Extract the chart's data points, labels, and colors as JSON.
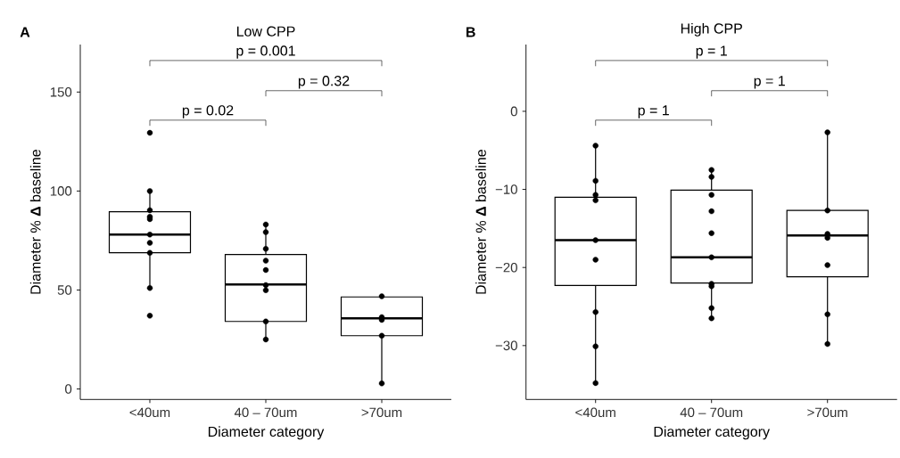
{
  "chart_data": [
    {
      "type": "box",
      "title": "Low CPP",
      "xlabel": "Diameter category",
      "ylabel": "Diameter % **Δ** baseline",
      "categories": [
        "<40um",
        "40 – 70um",
        ">70um"
      ],
      "boxes": [
        {
          "low": 51,
          "q1": 68.8,
          "median": 78,
          "q3": 89.5,
          "high": 100
        },
        {
          "low": 25,
          "q1": 34.1,
          "median": 52.8,
          "q3": 67.9,
          "high": 83.1
        },
        {
          "low": 2.8,
          "q1": 26.9,
          "median": 35.7,
          "q3": 46.5,
          "high": 46.8
        }
      ],
      "series": [
        {
          "type": "scatter",
          "color": "#000000",
          "x": [
            "<40um",
            "<40um",
            "<40um",
            "<40um",
            "<40um",
            "<40um",
            "<40um",
            "<40um",
            "<40um",
            "<40um"
          ],
          "values": [
            129.4,
            100,
            90.3,
            87,
            85.8,
            78,
            73.8,
            68.8,
            51,
            37
          ]
        },
        {
          "type": "scatter",
          "color": "#000000",
          "x": [
            "40 – 70um",
            "40 – 70um",
            "40 – 70um",
            "40 – 70um",
            "40 – 70um",
            "40 – 70um",
            "40 – 70um",
            "40 – 70um",
            "40 – 70um"
          ],
          "values": [
            83.1,
            79.2,
            70.8,
            64.8,
            60.1,
            52.5,
            49.9,
            34.1,
            25
          ]
        },
        {
          "type": "scatter",
          "color": "#000000",
          "x": [
            ">70um",
            ">70um",
            ">70um",
            ">70um",
            ">70um"
          ],
          "values": [
            46.8,
            36.3,
            34.9,
            26.9,
            2.8
          ]
        }
      ],
      "ylim": [
        -5.3,
        174
      ],
      "yticks": [
        0,
        50,
        100,
        150
      ],
      "marker": "circle",
      "grid": false,
      "annotations": [
        "A",
        "p = 0.02",
        "p = 0.32",
        "p = 0.001"
      ]
    },
    {
      "type": "box",
      "title": "High CPP",
      "xlabel": "Diameter category",
      "ylabel": "Diameter % **Δ** baseline",
      "categories": [
        "<40um",
        "40 – 70um",
        ">70um"
      ],
      "boxes": [
        {
          "low": -34.8,
          "q1": -22.3,
          "median": -16.5,
          "q3": -11.0,
          "high": -4.4
        },
        {
          "low": -26.5,
          "q1": -22.0,
          "median": -18.7,
          "q3": -10.1,
          "high": -7.5
        },
        {
          "low": -29.8,
          "q1": -21.2,
          "median": -15.9,
          "q3": -12.7,
          "high": -2.7
        }
      ],
      "series": [
        {
          "type": "scatter",
          "color": "#000000",
          "x": [
            "<40um",
            "<40um",
            "<40um",
            "<40um",
            "<40um",
            "<40um",
            "<40um",
            "<40um",
            "<40um"
          ],
          "values": [
            -4.4,
            -8.9,
            -10.7,
            -11.4,
            -16.5,
            -19.0,
            -25.7,
            -30.1,
            -34.8
          ]
        },
        {
          "type": "scatter",
          "color": "#000000",
          "x": [
            "40 – 70um",
            "40 – 70um",
            "40 – 70um",
            "40 – 70um",
            "40 – 70um",
            "40 – 70um",
            "40 – 70um",
            "40 – 70um",
            "40 – 70um",
            "40 – 70um"
          ],
          "values": [
            -7.5,
            -8.4,
            -10.7,
            -12.8,
            -15.6,
            -18.7,
            -22.1,
            -22.4,
            -25.2,
            -26.5
          ]
        },
        {
          "type": "scatter",
          "color": "#000000",
          "x": [
            ">70um",
            ">70um",
            ">70um",
            ">70um",
            ">70um",
            ">70um",
            ">70um"
          ],
          "values": [
            -2.7,
            -12.7,
            -15.7,
            -16.2,
            -19.7,
            -26.0,
            -29.8
          ]
        }
      ],
      "ylim": [
        -36.9,
        8.55
      ],
      "yticks": [
        {
          "value": -30,
          "label": "−30"
        },
        {
          "value": -20,
          "label": "−20"
        },
        {
          "value": -10,
          "label": "−10"
        },
        0
      ],
      "marker": "circle",
      "grid": false,
      "annotations": [
        "B",
        "p = 1",
        "p = 1",
        "p = 1"
      ]
    }
  ]
}
